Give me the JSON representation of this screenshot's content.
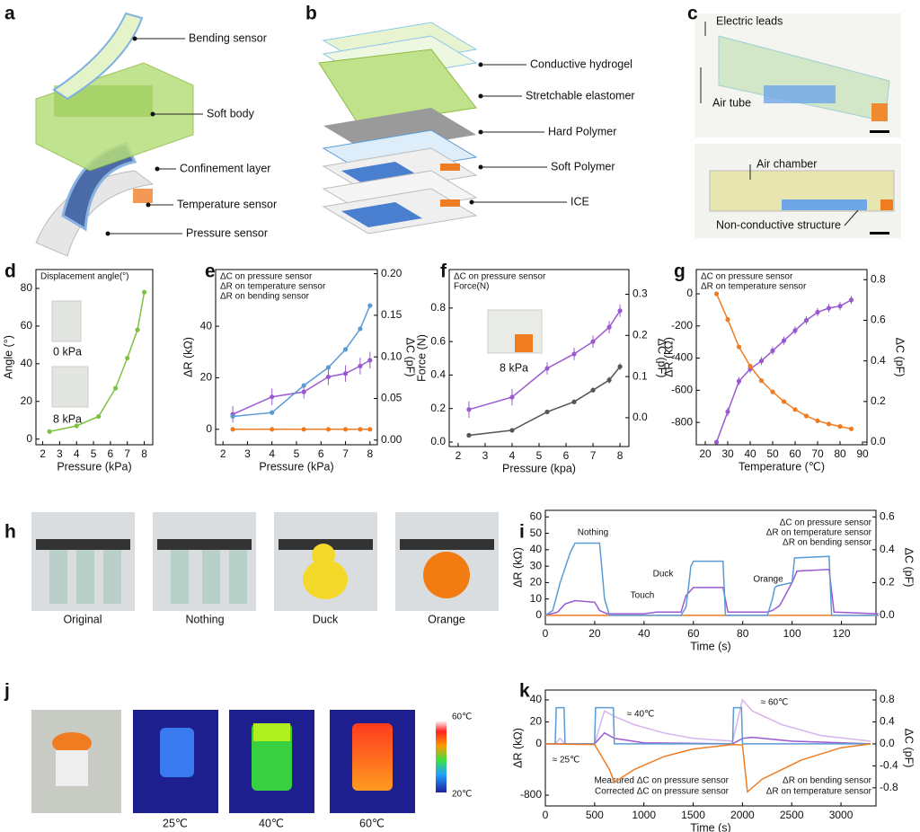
{
  "panels": [
    "a",
    "b",
    "c",
    "d",
    "e",
    "f",
    "g",
    "h",
    "i",
    "j",
    "k"
  ],
  "illustrations": {
    "a": [
      "Bending sensor",
      "Soft body",
      "Confinement layer",
      "Temperature sensor",
      "Pressure sensor"
    ],
    "b": [
      "Conductive hydrogel",
      "Stretchable elastomer",
      "Hard Polymer",
      "Soft Polymer",
      "ICE"
    ],
    "c": [
      "Electric leads",
      "Air tube",
      "Air chamber",
      "Non-conductive structure"
    ],
    "h": [
      "Original",
      "Nothing",
      "Duck",
      "Orange"
    ],
    "j": {
      "photos": [
        "25℃",
        "40℃",
        "60℃"
      ],
      "colorbar": [
        "60℃",
        "20℃"
      ]
    }
  },
  "chart_data": [
    {
      "type": "line",
      "markers": true,
      "legend": "upper left",
      "x": [
        2.4,
        4,
        5.3,
        6.3,
        7,
        7.6,
        8
      ],
      "series": [
        {
          "name": "Displacement angle(°)",
          "color": "#7dc142",
          "values": [
            4,
            7,
            12,
            27,
            43,
            58,
            78
          ]
        }
      ],
      "xlim": [
        1.6,
        8.5
      ],
      "xticks": [
        2,
        3,
        4,
        5,
        6,
        7,
        8
      ],
      "ylim": [
        -3,
        90
      ],
      "yticks": [
        0,
        20,
        40,
        60,
        80
      ],
      "xlabel": "Pressure (kPa)",
      "ylabel": "Angle (°)",
      "annotations": [
        "0 kPa",
        "8 kPa"
      ]
    },
    {
      "type": "line",
      "markers": true,
      "legend": "upper left",
      "x": [
        2.4,
        4,
        5.3,
        6.3,
        7,
        7.6,
        8
      ],
      "series": [
        {
          "name": "ΔC on pressure sensor",
          "color": "#9b59d0",
          "axis": "y2",
          "values": [
            0.031,
            0.052,
            0.058,
            0.076,
            0.08,
            0.089,
            0.096
          ],
          "errors": [
            0.01,
            0.01,
            0.008,
            0.01,
            0.01,
            0.01,
            0.01
          ]
        },
        {
          "name": "ΔR on temperature sensor",
          "color": "#f07c22",
          "values": [
            0,
            0,
            0,
            0,
            0,
            0,
            0
          ]
        },
        {
          "name": "ΔR on bending sensor",
          "color": "#5b9bd5",
          "values": [
            5,
            6.5,
            17,
            24,
            31,
            39,
            48
          ]
        }
      ],
      "xlim": [
        1.7,
        8.3
      ],
      "xticks": [
        2,
        3,
        4,
        5,
        6,
        7,
        8
      ],
      "ylim": [
        -6,
        62
      ],
      "yticks": [
        0,
        20,
        40
      ],
      "y2lim": [
        -0.0056,
        0.205
      ],
      "y2ticks": [
        {
          "value": 0,
          "label": "0.00"
        },
        0.05,
        {
          "value": 0.1,
          "label": "0.10"
        },
        0.15,
        {
          "value": 0.2,
          "label": "0.20"
        }
      ],
      "xlabel": "Pressure (kPa)",
      "ylabel": "ΔR (kΩ)",
      "y2label": "ΔC (pF)"
    },
    {
      "type": "line",
      "markers": true,
      "legend": "upper left",
      "x": [
        2.4,
        4,
        5.3,
        6.3,
        7,
        7.6,
        8
      ],
      "series": [
        {
          "name": "ΔC on pressure sensor",
          "color": "#9b59d0",
          "axis": "y2",
          "values": [
            0.02,
            0.05,
            0.12,
            0.155,
            0.185,
            0.22,
            0.26
          ],
          "errors": [
            0.02,
            0.02,
            0.015,
            0.015,
            0.015,
            0.015,
            0.015
          ]
        },
        {
          "name": "Force(N)",
          "color": "#555555",
          "values": [
            0.04,
            0.07,
            0.18,
            0.24,
            0.31,
            0.37,
            0.45
          ],
          "errors": [
            0.01,
            0.01,
            0.01,
            0.01,
            0.015,
            0.02,
            0.02
          ]
        }
      ],
      "xlim": [
        1.67,
        8.33
      ],
      "xticks": [
        2,
        3,
        4,
        5,
        6,
        7,
        8
      ],
      "ylim": [
        -0.027,
        1.03
      ],
      "yticks": [
        {
          "value": 0,
          "label": "0.0"
        },
        0.2,
        0.4,
        0.6,
        0.8
      ],
      "y2lim": [
        -0.07,
        0.36
      ],
      "y2ticks": [
        {
          "value": 0,
          "label": "0.0"
        },
        0.1,
        0.2,
        0.3
      ],
      "xlabel": "Pressure (kpa)",
      "ylabel": "Force (N)",
      "y2label": "ΔC (pF)",
      "annotations": [
        "8 kPa"
      ]
    },
    {
      "type": "line",
      "markers": true,
      "legend": "upper left",
      "x": [
        25,
        30,
        35,
        40,
        45,
        50,
        55,
        60,
        65,
        70,
        75,
        80,
        85
      ],
      "series": [
        {
          "name": "ΔC on pressure sensor",
          "color": "#9b59d0",
          "axis": "y2",
          "values": [
            0,
            0.15,
            0.3,
            0.36,
            0.4,
            0.45,
            0.5,
            0.55,
            0.6,
            0.64,
            0.66,
            0.67,
            0.7
          ],
          "errors": [
            0.01,
            0.02,
            0.02,
            0.02,
            0.02,
            0.02,
            0.02,
            0.02,
            0.02,
            0.02,
            0.02,
            0.02,
            0.02
          ]
        },
        {
          "name": "ΔR on temperature sensor",
          "color": "#f07c22",
          "values": [
            0,
            -160,
            -330,
            -450,
            -540,
            -610,
            -670,
            -720,
            -760,
            -790,
            -810,
            -825,
            -840
          ]
        }
      ],
      "xlim": [
        16,
        92
      ],
      "xticks": [
        20,
        30,
        40,
        50,
        60,
        70,
        80,
        90
      ],
      "ylim": [
        -939,
        151
      ],
      "yticks": [
        0,
        -200,
        -400,
        -600,
        -800
      ],
      "y2lim": [
        -0.013,
        0.85
      ],
      "y2ticks": [
        {
          "value": 0,
          "label": "0.0"
        },
        0.2,
        0.4,
        0.6,
        0.8
      ],
      "xlabel": "Temperature (℃)",
      "ylabel": "ΔR (kΩ)",
      "y2label": "ΔC (pF)"
    },
    {
      "type": "line",
      "legend": "upper right",
      "series": [
        {
          "name": "ΔC on pressure sensor",
          "color": "#9b59d0",
          "axis": "y2",
          "x": [
            0,
            5,
            8,
            12,
            20,
            22,
            25,
            40,
            45,
            55,
            57,
            60,
            72,
            74,
            90,
            92,
            95,
            100,
            102,
            115,
            117,
            135
          ],
          "values": [
            0,
            0.02,
            0.07,
            0.09,
            0.08,
            0.03,
            0.01,
            0.01,
            0.02,
            0.02,
            0.12,
            0.17,
            0.17,
            0.02,
            0.02,
            0.03,
            0.06,
            0.2,
            0.27,
            0.28,
            0.02,
            0.01
          ]
        },
        {
          "name": "ΔR on temperature sensor",
          "color": "#f07c22",
          "x": [
            0,
            135
          ],
          "values": [
            0,
            0
          ]
        },
        {
          "name": "ΔR on bending sensor",
          "color": "#5b9bd5",
          "x": [
            0,
            3,
            6,
            10,
            12,
            20,
            22,
            24,
            26,
            40,
            55,
            57,
            58,
            59,
            60,
            72,
            73,
            75,
            90,
            92,
            93,
            94,
            100,
            101,
            115,
            116,
            118,
            135
          ],
          "values": [
            0,
            3,
            20,
            38,
            44,
            44,
            44,
            10,
            0,
            0,
            0,
            5,
            17,
            30,
            33,
            33,
            0,
            0,
            0,
            10,
            17,
            18,
            20,
            35,
            36,
            0,
            0,
            0
          ]
        }
      ],
      "xlim": [
        0,
        134
      ],
      "xticks": [
        0,
        20,
        40,
        60,
        80,
        100,
        120
      ],
      "ylim": [
        -5.5,
        64
      ],
      "yticks": [
        0,
        10,
        20,
        30,
        40,
        50,
        60
      ],
      "y2lim": [
        -0.055,
        0.64
      ],
      "y2ticks": [
        {
          "value": 0,
          "label": "0.0"
        },
        0.2,
        0.4,
        0.6
      ],
      "xlabel": "Time (s)",
      "ylabel": "ΔR (kΩ)",
      "y2label": "ΔC (pF)",
      "annotations": [
        "Nothing",
        "Touch",
        "Duck",
        "Orange"
      ]
    },
    {
      "type": "line",
      "legend": "lower center",
      "broken_axis": true,
      "series": [
        {
          "name": "Measured ΔC on pressure sensor",
          "color": "#d6b4ee",
          "axis": "y2",
          "x": [
            0,
            100,
            150,
            200,
            500,
            600,
            700,
            900,
            1200,
            1500,
            1900,
            2000,
            2100,
            2400,
            2800,
            3300
          ],
          "values": [
            0,
            0,
            0.1,
            0,
            0,
            0.6,
            0.5,
            0.35,
            0.2,
            0.1,
            0.05,
            0.8,
            0.6,
            0.35,
            0.15,
            0.05
          ]
        },
        {
          "name": "Corrected ΔC on pressure sensor",
          "color": "#9b59d0",
          "axis": "y2",
          "x": [
            0,
            500,
            600,
            700,
            1000,
            1900,
            2000,
            2100,
            2500,
            3300
          ],
          "values": [
            0,
            0,
            0.2,
            0.1,
            0.02,
            0,
            0.1,
            0.12,
            0.05,
            0
          ]
        },
        {
          "name": "ΔR on bending sensor",
          "color": "#5b9bd5",
          "x": [
            0,
            100,
            110,
            190,
            200,
            500,
            510,
            690,
            700,
            1900,
            1910,
            1990,
            2000,
            3300
          ],
          "values": [
            0,
            0,
            33,
            33,
            0,
            0,
            33,
            33,
            0,
            0,
            33,
            33,
            0,
            0
          ]
        },
        {
          "name": "ΔR on temperature sensor",
          "color": "#f07c22",
          "x": [
            0,
            200,
            500,
            650,
            700,
            900,
            1200,
            1500,
            1900,
            2000,
            2050,
            2200,
            2600,
            3000,
            3300
          ],
          "values": [
            0,
            -5,
            -10,
            -400,
            -600,
            -400,
            -200,
            -80,
            -10,
            -20,
            -750,
            -550,
            -250,
            -60,
            0
          ]
        }
      ],
      "xlim": [
        0,
        3355
      ],
      "xticks": [
        0,
        500,
        1000,
        1500,
        2000,
        2500,
        3000
      ],
      "ylim": [
        -968,
        49
      ],
      "yticks": [
        40,
        20,
        0,
        -800
      ],
      "y2lim": [
        -1.13,
        0.98
      ],
      "y2ticks": [
        0.8,
        0.4,
        {
          "value": 0,
          "label": "0.0"
        },
        -0.4,
        -0.8
      ],
      "xlabel": "Time (s)",
      "ylabel": "ΔR (kΩ)",
      "y2label": "ΔC (pF)",
      "annotations": [
        "≈ 25℃",
        "≈ 40℃",
        "≈ 60℃"
      ]
    }
  ]
}
